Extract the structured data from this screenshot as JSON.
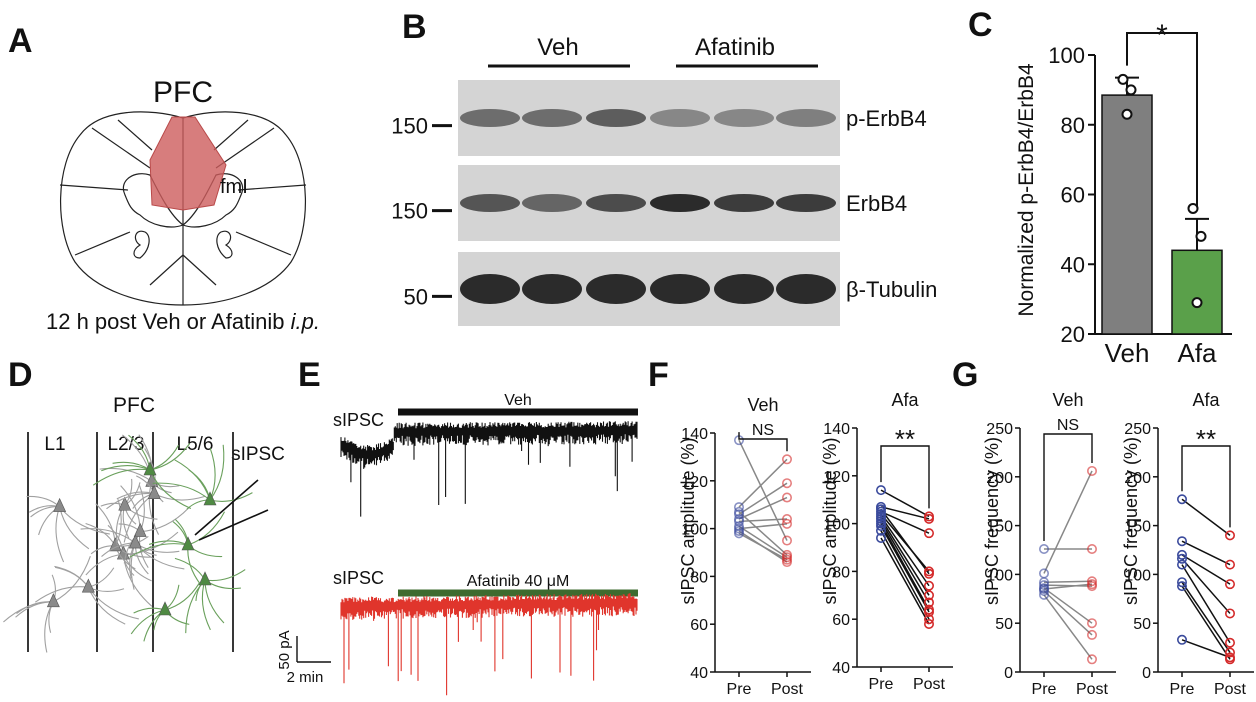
{
  "panels": {
    "A": {
      "letter": "A",
      "region": "PFC",
      "tract": "fmI",
      "caption_main": "12 h post Veh or Afatinib ",
      "caption_italic": "i.p."
    },
    "B": {
      "letter": "B",
      "group_left": "Veh",
      "group_right": "Afatinib",
      "rows": [
        {
          "label": "p-ErbB4",
          "marker": "150",
          "band_strength": [
            0.55,
            0.55,
            0.65,
            0.4,
            0.4,
            0.45
          ]
        },
        {
          "label": "ErbB4",
          "marker": "150",
          "band_strength": [
            0.7,
            0.6,
            0.75,
            0.95,
            0.85,
            0.85
          ]
        },
        {
          "label": "β-Tubulin",
          "marker": "50",
          "band_strength": [
            0.95,
            0.95,
            0.95,
            0.95,
            0.95,
            0.95
          ]
        }
      ]
    },
    "C": {
      "letter": "C",
      "ylabel": "Normalized p-ErbB4/ErbB4",
      "yticks": [
        "20",
        "40",
        "60",
        "80",
        "100"
      ],
      "significance": "*"
    },
    "D": {
      "letter": "D",
      "title": "PFC",
      "layers": [
        "L1",
        "L2/3",
        "L5/6"
      ],
      "electrode_label": "sIPSC"
    },
    "E": {
      "letter": "E",
      "trace_top_label": "sIPSC",
      "trace_top_bar": "Veh",
      "trace_bottom_label": "sIPSC",
      "trace_bottom_bar": "Afatinib 40 μM",
      "scale_y": "50 pA",
      "scale_x": "2 min"
    },
    "F": {
      "letter": "F",
      "ylabel": "sIPSC amplitude (%)",
      "xticks": [
        "Pre",
        "Post"
      ]
    },
    "G": {
      "letter": "G",
      "ylabel": "sIPSC frequency (%)",
      "xticks": [
        "Pre",
        "Post"
      ]
    }
  },
  "colors": {
    "veh_bar": "#7f7f7f",
    "afa_bar": "#5aa04a",
    "pre_point": "#3a4a9c",
    "post_point": "#d42a2a",
    "afatinib_trace": "#e0352c",
    "veh_trace": "#111111",
    "afatinib_bar": "#3e6b2f",
    "pfc_region": "#cd5c5c"
  },
  "chart_data": [
    {
      "id": "C",
      "type": "bar",
      "categories": [
        "Veh",
        "Afa"
      ],
      "values": [
        88.5,
        44
      ],
      "errors": [
        5,
        9
      ],
      "points": [
        [
          93,
          90,
          83
        ],
        [
          56,
          48,
          29
        ]
      ],
      "ylabel": "Normalized p-ErbB4/ErbB4",
      "ylim": [
        20,
        100
      ],
      "significance": "*"
    },
    {
      "id": "F-Veh",
      "type": "line",
      "title": "Veh",
      "xlabel_ticks": [
        "Pre",
        "Post"
      ],
      "ylabel": "sIPSC amplitude (%)",
      "ylim": [
        40,
        140
      ],
      "yticks": [
        40,
        60,
        80,
        100,
        120,
        140
      ],
      "pairs": [
        [
          137,
          95
        ],
        [
          109,
          129
        ],
        [
          106,
          119
        ],
        [
          104,
          113
        ],
        [
          103,
          104
        ],
        [
          101,
          88
        ],
        [
          99,
          86
        ],
        [
          98,
          87
        ],
        [
          100,
          102
        ],
        [
          107,
          89
        ]
      ],
      "significance": "NS"
    },
    {
      "id": "F-Afa",
      "type": "line",
      "title": "Afa",
      "xlabel_ticks": [
        "Pre",
        "Post"
      ],
      "ylabel": "sIPSC amplitude (%)",
      "ylim": [
        40,
        140
      ],
      "yticks": [
        40,
        60,
        80,
        100,
        120,
        140
      ],
      "pairs": [
        [
          114,
          103
        ],
        [
          107,
          102
        ],
        [
          105,
          96
        ],
        [
          104,
          80
        ],
        [
          103,
          74
        ],
        [
          101,
          67
        ],
        [
          100,
          64
        ],
        [
          99,
          63
        ],
        [
          97,
          60
        ],
        [
          94,
          58
        ],
        [
          102,
          70
        ],
        [
          106,
          79
        ]
      ],
      "significance": "**"
    },
    {
      "id": "G-Veh",
      "type": "line",
      "title": "Veh",
      "xlabel_ticks": [
        "Pre",
        "Post"
      ],
      "ylabel": "sIPSC frequency (%)",
      "ylim": [
        0,
        250
      ],
      "yticks": [
        0,
        50,
        100,
        150,
        200,
        250
      ],
      "pairs": [
        [
          126,
          126
        ],
        [
          101,
          206
        ],
        [
          92,
          93
        ],
        [
          89,
          88
        ],
        [
          86,
          50
        ],
        [
          83,
          38
        ],
        [
          79,
          13
        ],
        [
          85,
          90
        ]
      ],
      "significance": "NS"
    },
    {
      "id": "G-Afa",
      "type": "line",
      "title": "Afa",
      "xlabel_ticks": [
        "Pre",
        "Post"
      ],
      "ylabel": "sIPSC frequency (%)",
      "ylim": [
        0,
        250
      ],
      "yticks": [
        0,
        50,
        100,
        150,
        200,
        250
      ],
      "pairs": [
        [
          177,
          140
        ],
        [
          134,
          110
        ],
        [
          120,
          90
        ],
        [
          116,
          60
        ],
        [
          110,
          30
        ],
        [
          92,
          20
        ],
        [
          88,
          13
        ],
        [
          33,
          15
        ]
      ],
      "significance": "**"
    }
  ]
}
